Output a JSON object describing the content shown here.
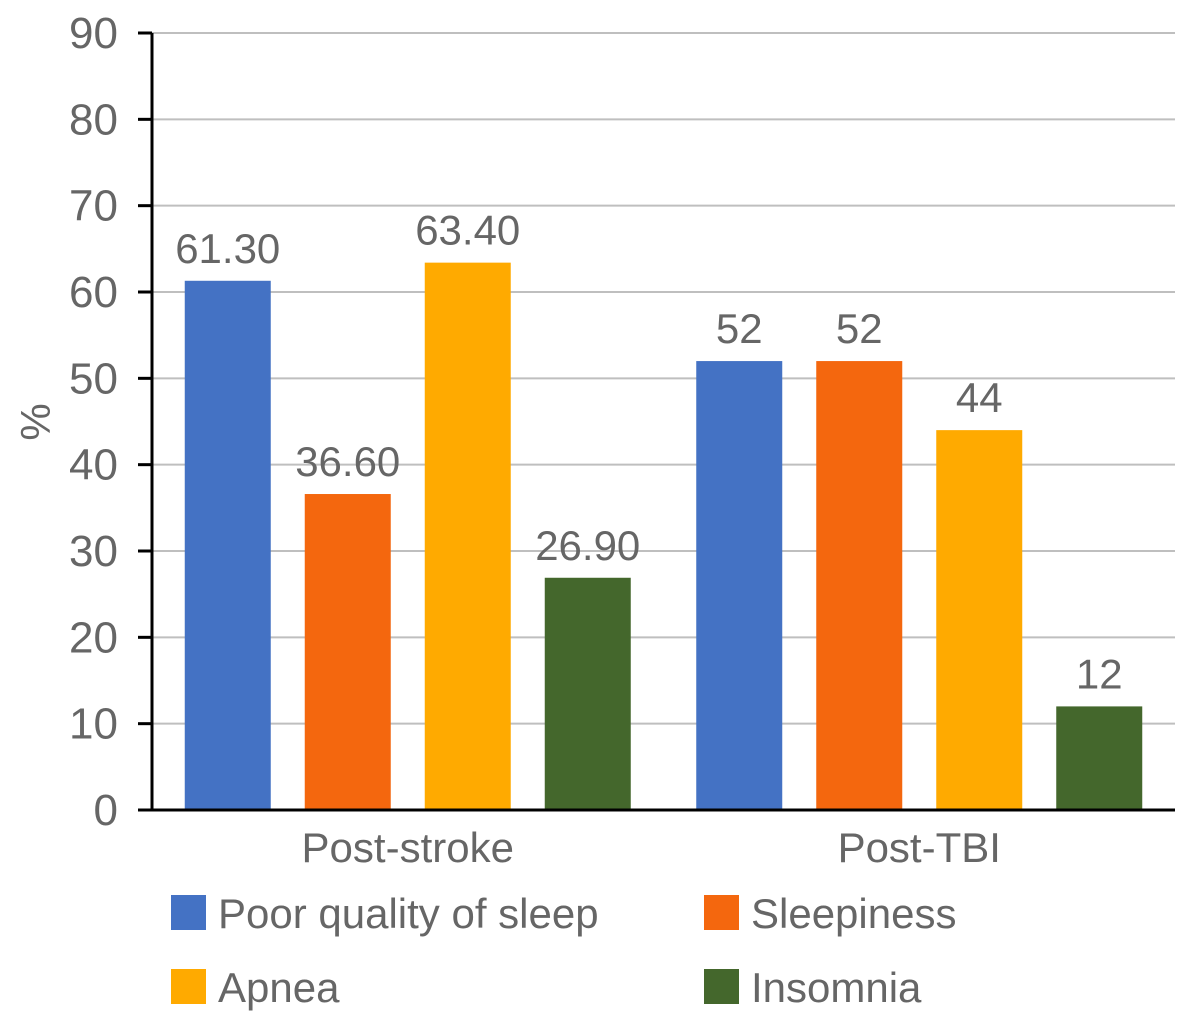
{
  "chart_data": {
    "type": "bar",
    "title": "",
    "xlabel": "",
    "ylabel": "%",
    "ylim": [
      0,
      90
    ],
    "yticks": [
      0,
      10,
      20,
      30,
      40,
      50,
      60,
      70,
      80,
      90
    ],
    "grid": true,
    "legend_position": "bottom",
    "categories": [
      "Post-stroke",
      "Post-TBI"
    ],
    "series": [
      {
        "name": "Poor quality of sleep",
        "color": "#4472C4",
        "values": [
          61.3,
          52
        ],
        "labels": [
          "61.30",
          "52"
        ]
      },
      {
        "name": "Sleepiness",
        "color": "#F4670E",
        "values": [
          36.6,
          52
        ],
        "labels": [
          "36.60",
          "52"
        ]
      },
      {
        "name": "Apnea",
        "color": "#FFAA00",
        "values": [
          63.4,
          44
        ],
        "labels": [
          "63.40",
          "44"
        ]
      },
      {
        "name": "Insomnia",
        "color": "#44672C",
        "values": [
          26.9,
          12
        ],
        "labels": [
          "26.90",
          "12"
        ]
      }
    ]
  }
}
